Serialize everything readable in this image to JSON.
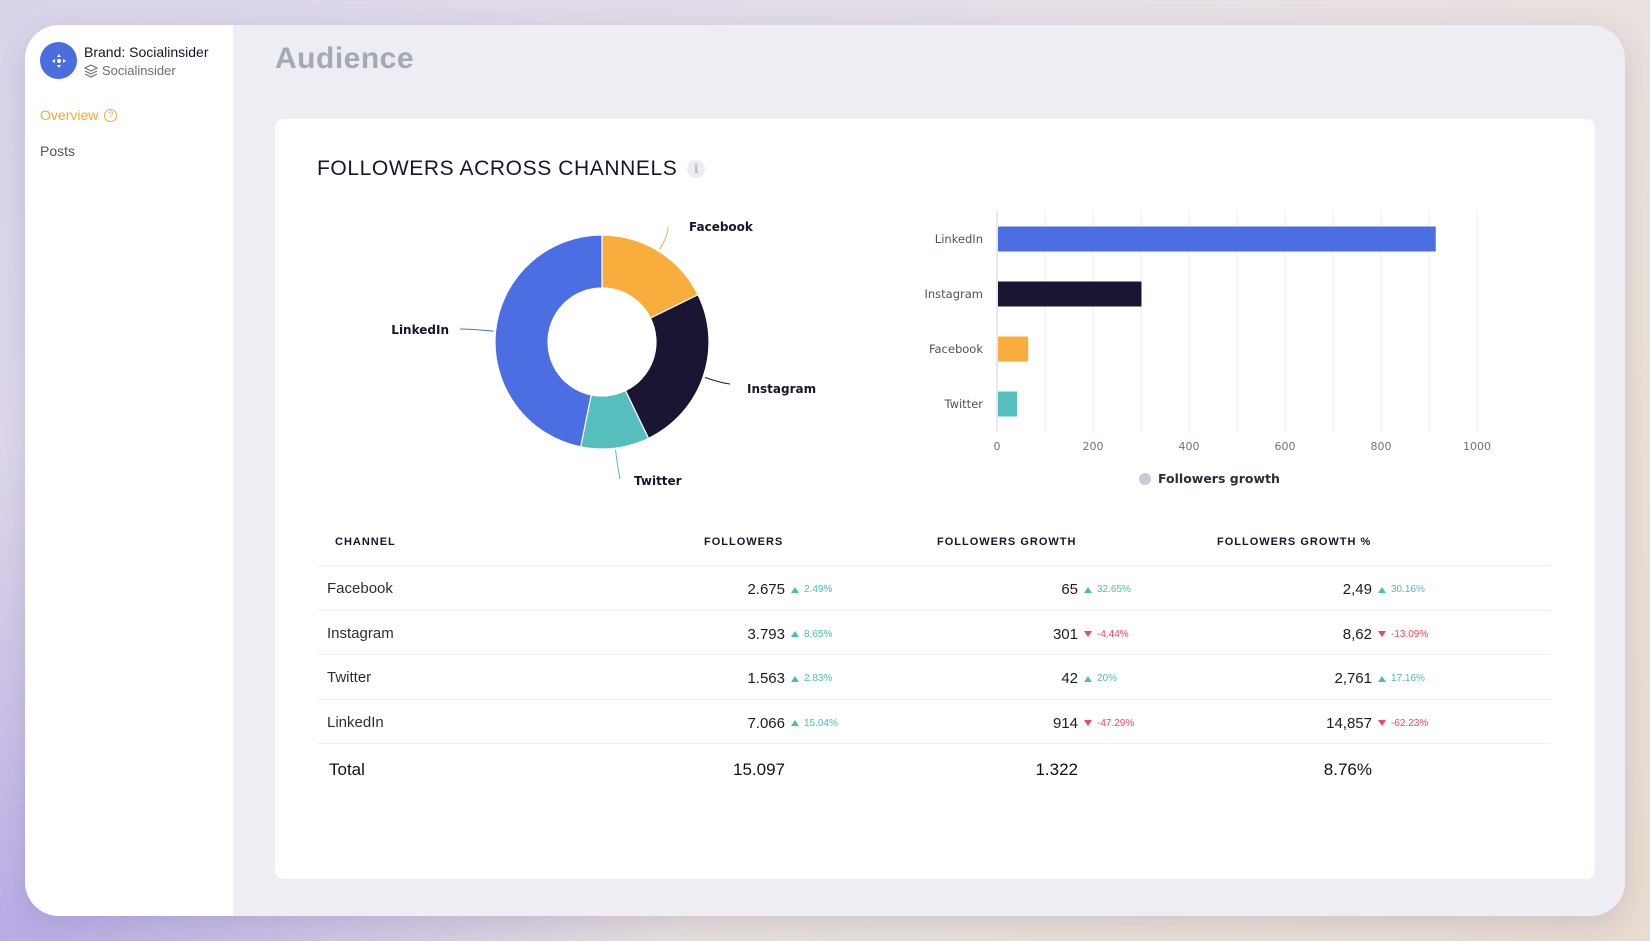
{
  "sidebar": {
    "brand_title": "Brand: Socialinsider",
    "brand_sub": "Socialinsider",
    "nav": [
      {
        "label": "Overview",
        "active": true
      },
      {
        "label": "Posts",
        "active": false
      }
    ]
  },
  "page_title": "Audience",
  "card": {
    "title": "FOLLOWERS ACROSS CHANNELS"
  },
  "colors": {
    "facebook": "#f8ad3d",
    "instagram": "#181632",
    "twitter": "#56bfbd",
    "linkedin": "#4b6fe3",
    "accent": "#f2a93b"
  },
  "chart_data": [
    {
      "type": "pie",
      "slices": [
        {
          "label": "Facebook",
          "value": 2675
        },
        {
          "label": "Instagram",
          "value": 3793
        },
        {
          "label": "Twitter",
          "value": 1563
        },
        {
          "label": "LinkedIn",
          "value": 7066
        }
      ]
    },
    {
      "type": "bar",
      "orientation": "horizontal",
      "categories": [
        "LinkedIn",
        "Instagram",
        "Facebook",
        "Twitter"
      ],
      "values": [
        914,
        301,
        65,
        42
      ],
      "xticks": [
        "0",
        "200",
        "400",
        "600",
        "800",
        "1000"
      ],
      "xlim": [
        0,
        1000
      ],
      "legend": "Followers growth",
      "legend_position": "bottom",
      "grid": true
    }
  ],
  "table": {
    "headers": [
      "CHANNEL",
      "FOLLOWERS",
      "FOLLOWERS GROWTH",
      "FOLLOWERS GROWTH %"
    ],
    "rows": [
      {
        "channel": "Facebook",
        "followers": "2.675",
        "followers_chg": "2.49%",
        "followers_dir": "up",
        "growth": "65",
        "growth_chg": "32.65%",
        "growth_dir": "up",
        "growth_pct": "2,49",
        "growth_pct_chg": "30.16%",
        "growth_pct_dir": "up"
      },
      {
        "channel": "Instagram",
        "followers": "3.793",
        "followers_chg": "8.65%",
        "followers_dir": "up",
        "growth": "301",
        "growth_chg": "-4.44%",
        "growth_dir": "down",
        "growth_pct": "8,62",
        "growth_pct_chg": "-13.09%",
        "growth_pct_dir": "down"
      },
      {
        "channel": "Twitter",
        "followers": "1.563",
        "followers_chg": "2.83%",
        "followers_dir": "up",
        "growth": "42",
        "growth_chg": "20%",
        "growth_dir": "up",
        "growth_pct": "2,761",
        "growth_pct_chg": "17.16%",
        "growth_pct_dir": "up"
      },
      {
        "channel": "LinkedIn",
        "followers": "7.066",
        "followers_chg": "15.04%",
        "followers_dir": "up",
        "growth": "914",
        "growth_chg": "-47.29%",
        "growth_dir": "down",
        "growth_pct": "14,857",
        "growth_pct_chg": "-62.23%",
        "growth_pct_dir": "down"
      }
    ],
    "total": {
      "label": "Total",
      "followers": "15.097",
      "growth": "1.322",
      "growth_pct": "8.76%"
    }
  }
}
